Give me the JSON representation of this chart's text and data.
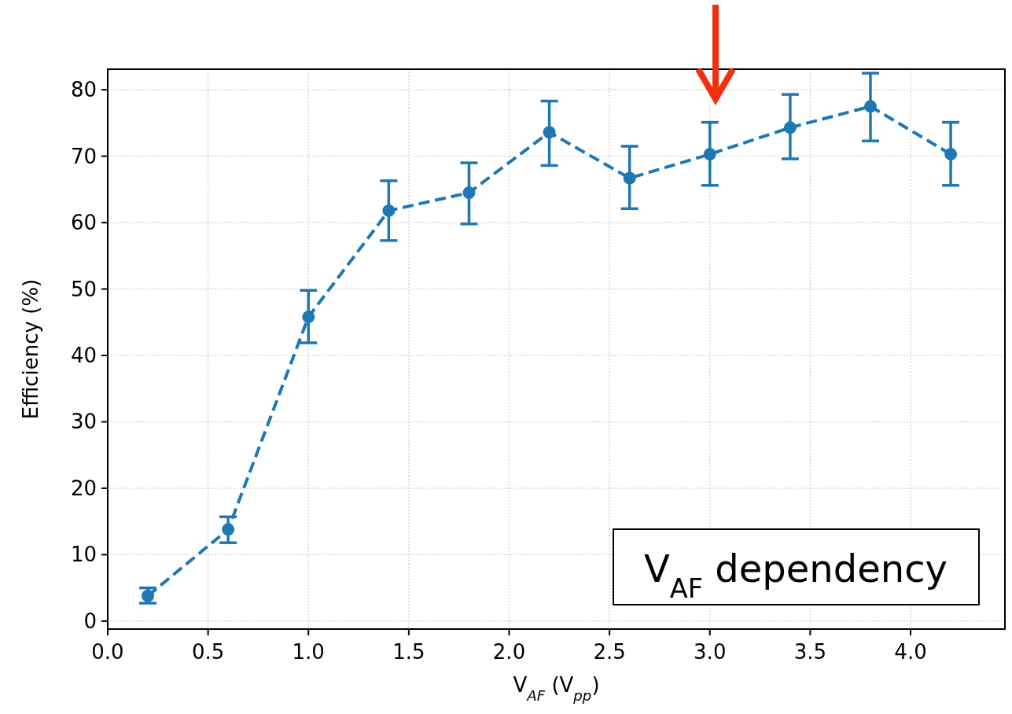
{
  "chart_data": {
    "type": "line",
    "xlabel": "V$_{AF}$ (V$_{pp}$)",
    "ylabel": "Efficiency (%)",
    "x": [
      0.2,
      0.6,
      1.0,
      1.4,
      1.8,
      2.2,
      2.6,
      3.0,
      3.4,
      3.8,
      4.2
    ],
    "series": [
      {
        "color": "#1f77b4",
        "values": [
          3.8,
          13.8,
          45.8,
          61.8,
          64.5,
          73.6,
          66.7,
          70.3,
          74.3,
          77.5,
          70.3
        ],
        "errors": [
          [
            2.7,
            5.0
          ],
          [
            11.8,
            15.7
          ],
          [
            41.9,
            49.8
          ],
          [
            57.3,
            66.3
          ],
          [
            59.8,
            69.0
          ],
          [
            68.6,
            78.3
          ],
          [
            62.1,
            71.5
          ],
          [
            65.6,
            75.1
          ],
          [
            69.6,
            79.3
          ],
          [
            72.3,
            82.5
          ],
          [
            65.6,
            75.1
          ]
        ]
      }
    ],
    "xlim": [
      0,
      4.47
    ],
    "ylim": [
      -1.2,
      83.1
    ],
    "xticks": [
      {
        "value": 0,
        "label": "0.0"
      },
      0.5,
      {
        "value": 1,
        "label": "1.0"
      },
      1.5,
      {
        "value": 2,
        "label": "2.0"
      },
      2.5,
      {
        "value": 3,
        "label": "3.0"
      },
      3.5,
      {
        "value": 4,
        "label": "4.0"
      }
    ],
    "yticks": [
      0,
      10,
      20,
      30,
      40,
      50,
      60,
      70,
      80
    ],
    "grid": true,
    "marker": "circle",
    "line_style": "dashed",
    "annotations": [
      "V$_{AF}$ dependency"
    ]
  }
}
